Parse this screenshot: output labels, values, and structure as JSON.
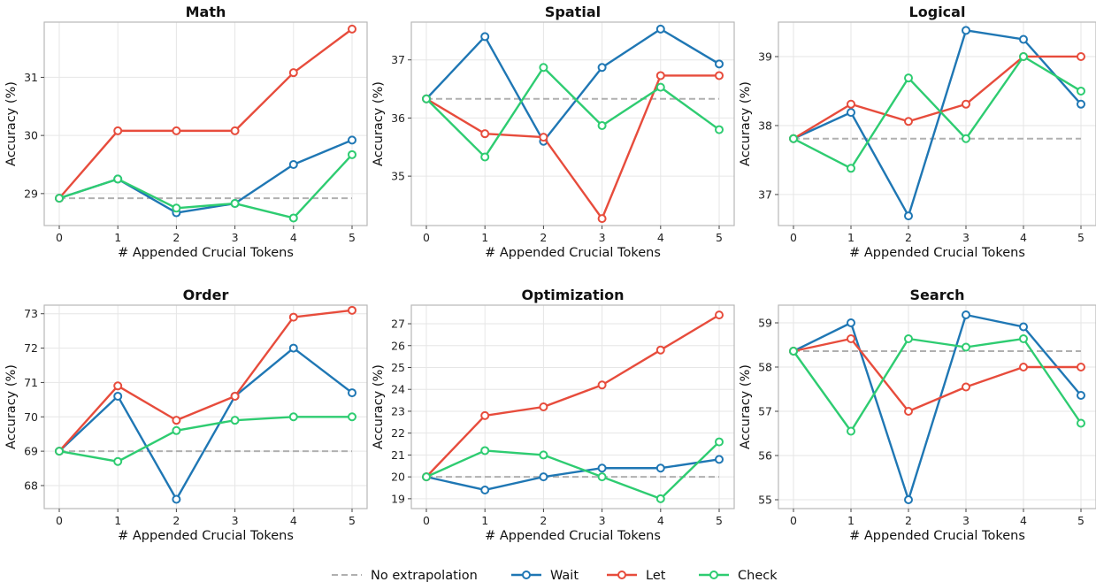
{
  "figure": {
    "xlabel": "# Appended Crucial Tokens",
    "ylabel": "Accuracy (%)",
    "x_ticks": [
      0,
      1,
      2,
      3,
      4,
      5
    ],
    "colors": {
      "baseline": "#b0b0b0",
      "Wait": "#1f77b4",
      "Let": "#e74c3c",
      "Check": "#2ecc71"
    },
    "legend": {
      "placement": "bottom-center",
      "entries": [
        {
          "label": "No extrapolation",
          "style": "dashed",
          "color": "#b0b0b0"
        },
        {
          "label": "Wait",
          "style": "line-marker",
          "color": "#1f77b4"
        },
        {
          "label": "Let",
          "style": "line-marker",
          "color": "#e74c3c"
        },
        {
          "label": "Check",
          "style": "line-marker",
          "color": "#2ecc71"
        }
      ]
    }
  },
  "chart_data": [
    {
      "type": "line",
      "title": "Math",
      "xlabel": "# Appended Crucial Tokens",
      "ylabel": "Accuracy (%)",
      "x": [
        0,
        1,
        2,
        3,
        4,
        5
      ],
      "ylim": [
        28.45,
        31.95
      ],
      "yticks": [
        29,
        30,
        31
      ],
      "grid": true,
      "baseline": 28.92,
      "series": [
        {
          "name": "Wait",
          "values": [
            28.92,
            29.25,
            28.67,
            28.83,
            29.5,
            29.92
          ]
        },
        {
          "name": "Let",
          "values": [
            28.92,
            30.08,
            30.08,
            30.08,
            31.08,
            31.83
          ]
        },
        {
          "name": "Check",
          "values": [
            28.92,
            29.25,
            28.75,
            28.83,
            28.58,
            29.67
          ]
        }
      ]
    },
    {
      "type": "line",
      "title": "Spatial",
      "xlabel": "# Appended Crucial Tokens",
      "ylabel": "Accuracy (%)",
      "x": [
        0,
        1,
        2,
        3,
        4,
        5
      ],
      "ylim": [
        34.15,
        37.65
      ],
      "yticks": [
        35,
        36,
        37
      ],
      "grid": true,
      "baseline": 36.33,
      "series": [
        {
          "name": "Wait",
          "values": [
            36.33,
            37.4,
            35.6,
            36.87,
            37.53,
            36.93
          ]
        },
        {
          "name": "Let",
          "values": [
            36.33,
            35.73,
            35.67,
            34.27,
            36.73,
            36.73
          ]
        },
        {
          "name": "Check",
          "values": [
            36.33,
            35.33,
            36.87,
            35.87,
            36.53,
            35.8
          ]
        }
      ]
    },
    {
      "type": "line",
      "title": "Logical",
      "xlabel": "# Appended Crucial Tokens",
      "ylabel": "Accuracy (%)",
      "x": [
        0,
        1,
        2,
        3,
        4,
        5
      ],
      "ylim": [
        36.55,
        39.5
      ],
      "yticks": [
        37,
        38,
        39
      ],
      "grid": true,
      "baseline": 37.81,
      "series": [
        {
          "name": "Wait",
          "values": [
            37.81,
            38.19,
            36.69,
            39.38,
            39.25,
            38.31
          ]
        },
        {
          "name": "Let",
          "values": [
            37.81,
            38.31,
            38.06,
            38.31,
            39.0,
            39.0
          ]
        },
        {
          "name": "Check",
          "values": [
            37.81,
            37.38,
            38.69,
            37.81,
            39.0,
            38.5
          ]
        }
      ]
    },
    {
      "type": "line",
      "title": "Order",
      "xlabel": "# Appended Crucial Tokens",
      "ylabel": "Accuracy (%)",
      "x": [
        0,
        1,
        2,
        3,
        4,
        5
      ],
      "ylim": [
        67.33,
        73.25
      ],
      "yticks": [
        68,
        69,
        70,
        71,
        72,
        73
      ],
      "grid": true,
      "baseline": 69.0,
      "series": [
        {
          "name": "Wait",
          "values": [
            69.0,
            70.6,
            67.6,
            70.6,
            72.0,
            70.7
          ]
        },
        {
          "name": "Let",
          "values": [
            69.0,
            70.9,
            69.9,
            70.6,
            72.9,
            73.1
          ]
        },
        {
          "name": "Check",
          "values": [
            69.0,
            68.7,
            69.6,
            69.9,
            70.0,
            70.0
          ]
        }
      ]
    },
    {
      "type": "line",
      "title": "Optimization",
      "xlabel": "# Appended Crucial Tokens",
      "ylabel": "Accuracy (%)",
      "x": [
        0,
        1,
        2,
        3,
        4,
        5
      ],
      "ylim": [
        18.55,
        27.85
      ],
      "yticks": [
        19,
        20,
        21,
        22,
        23,
        24,
        25,
        26,
        27
      ],
      "grid": true,
      "baseline": 20.0,
      "series": [
        {
          "name": "Wait",
          "values": [
            20.0,
            19.4,
            20.0,
            20.4,
            20.4,
            20.8
          ]
        },
        {
          "name": "Let",
          "values": [
            20.0,
            22.8,
            23.2,
            24.2,
            25.8,
            27.4
          ]
        },
        {
          "name": "Check",
          "values": [
            20.0,
            21.2,
            21.0,
            20.0,
            19.0,
            21.6
          ]
        }
      ]
    },
    {
      "type": "line",
      "title": "Search",
      "xlabel": "# Appended Crucial Tokens",
      "ylabel": "Accuracy (%)",
      "x": [
        0,
        1,
        2,
        3,
        4,
        5
      ],
      "ylim": [
        54.8,
        59.4
      ],
      "yticks": [
        55,
        56,
        57,
        58,
        59
      ],
      "grid": true,
      "baseline": 58.36,
      "series": [
        {
          "name": "Wait",
          "values": [
            58.36,
            59.0,
            55.0,
            59.18,
            58.91,
            57.36
          ]
        },
        {
          "name": "Let",
          "values": [
            58.36,
            58.64,
            57.0,
            57.55,
            58.0,
            58.0
          ]
        },
        {
          "name": "Check",
          "values": [
            58.36,
            56.55,
            58.64,
            58.45,
            58.64,
            56.73
          ]
        }
      ]
    }
  ]
}
